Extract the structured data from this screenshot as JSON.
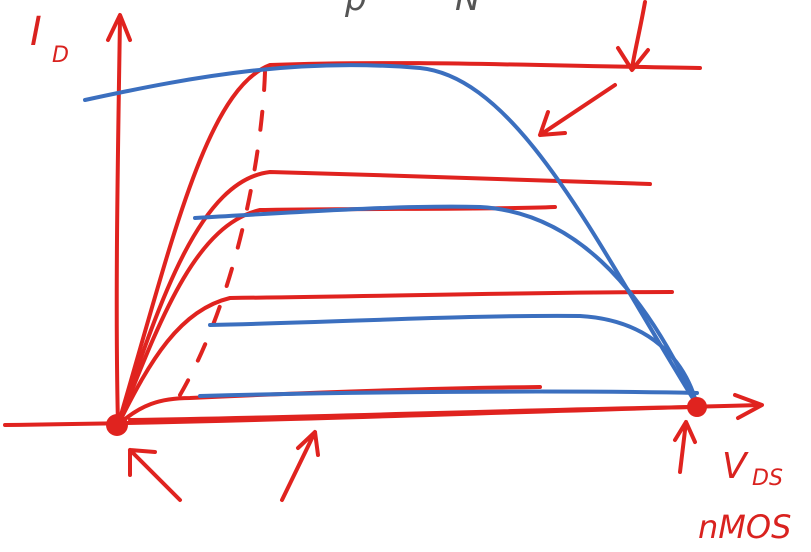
{
  "labels": {
    "top_left": "p",
    "top_right": "N",
    "y_axis_main": "I",
    "y_axis_sub": "D",
    "x_axis_main": "V",
    "x_axis_sub": "DS",
    "device": "nMOS"
  }
}
